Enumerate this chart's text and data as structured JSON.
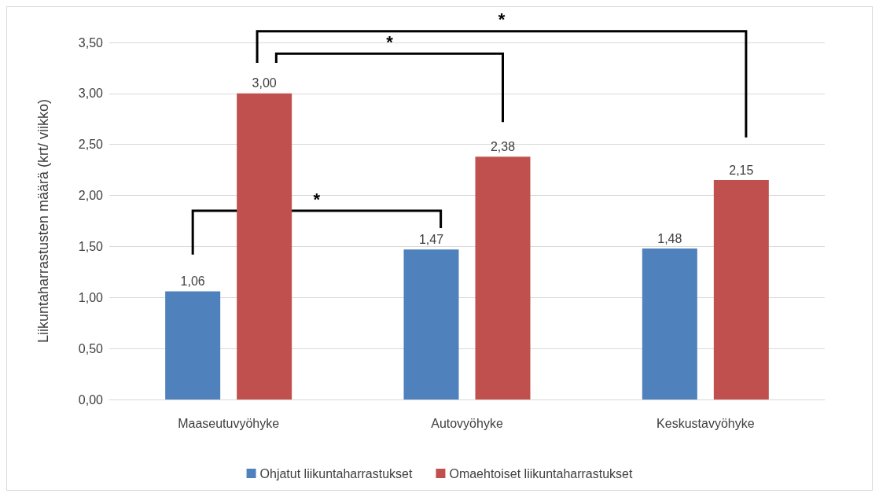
{
  "chart_data": {
    "type": "bar",
    "ylabel": "Liikuntaharrastusten määrä (krt/ viikko)",
    "categories": [
      "Maaseutuvyöhyke",
      "Autovyöhyke",
      "Keskustavyöhyke"
    ],
    "series": [
      {
        "name": "Ohjatut liikuntaharrastukset",
        "color": "#4f81bd",
        "values": [
          1.06,
          1.47,
          1.48
        ],
        "value_labels": [
          "1,06",
          "1,47",
          "1,48"
        ]
      },
      {
        "name": "Omaehtoiset liikuntaharrastukset",
        "color": "#c0504d",
        "values": [
          3.0,
          2.38,
          2.15
        ],
        "value_labels": [
          "3,00",
          "2,38",
          "2,15"
        ]
      }
    ],
    "ylim": [
      0,
      3.5
    ],
    "yticks": [
      {
        "value": 0,
        "label": "0,00"
      },
      {
        "value": 0.5,
        "label": "0,50"
      },
      {
        "value": 1,
        "label": "1,00"
      },
      {
        "value": 1.5,
        "label": "1,50"
      },
      {
        "value": 2,
        "label": "2,00"
      },
      {
        "value": 2.5,
        "label": "2,50"
      },
      {
        "value": 3,
        "label": "3,00"
      },
      {
        "value": 3.5,
        "label": "3,50"
      }
    ],
    "grid": "y",
    "legend": "bottom",
    "annotations": [
      "*",
      "*",
      "*"
    ]
  }
}
